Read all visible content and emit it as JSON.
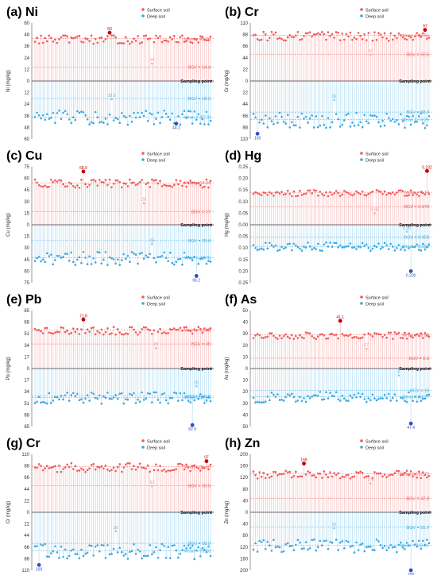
{
  "figure": {
    "colors": {
      "surface": "#f05a5a",
      "deep": "#3aa8e0",
      "highlight_surface": "#c00000",
      "highlight_deep": "#3050c0"
    },
    "legend": {
      "surface": "Surface soil",
      "deep": "Deep soil"
    },
    "xlabel": "Sampling point"
  },
  "chart_data": [
    {
      "type": "scatter",
      "title": "(a) Ni",
      "ylabel": "Ni (mg/kg)",
      "top_ticks": [
        "60",
        "48",
        "36",
        "24",
        "12"
      ],
      "bottom_ticks": [
        "0",
        "12",
        "24",
        "36",
        "48",
        "60"
      ],
      "ylim": [
        -60,
        60
      ],
      "surface_mean_label": "Mean = 43.76",
      "surface_mean": 43.76,
      "bgv_top_label": "BGV = 14.4",
      "bgv_top": 14.4,
      "bgv_bottom_label": "BGV = 18.2",
      "bgv_bottom": 18.2,
      "deep_mean_label": "Mean = 37.26",
      "deep_mean": 37.26,
      "max_surface_label": "50",
      "max_surface": 50,
      "max_surface_idx": 37,
      "min_surface_label": "18",
      "min_surface": 18,
      "min_surface_idx": 58,
      "max_deep_label": "44.1",
      "max_deep": 44.1,
      "max_deep_idx": 70,
      "min_deep_label": "18.9",
      "min_deep": 18.9,
      "min_deep_idx": 38
    },
    {
      "type": "scatter",
      "title": "(b) Cr",
      "ylabel": "Cr (mg/kg)",
      "top_ticks": [
        "110",
        "88",
        "66",
        "44",
        "22"
      ],
      "bottom_ticks": [
        "0",
        "22",
        "44",
        "66",
        "88",
        "110"
      ],
      "ylim": [
        -110,
        110
      ],
      "surface_mean_label": "Mean = 86.56",
      "surface_mean": 86.56,
      "bgv_top_label": "BGV = 50.5",
      "bgv_top": 50.5,
      "bgv_bottom_label": "BGV = 58.9",
      "bgv_bottom": 58.9,
      "deep_mean_label": "Mean = 73.26",
      "deep_mean": 73.26,
      "max_surface_label": "97",
      "max_surface": 97,
      "max_surface_idx": 85,
      "min_surface_label": "50",
      "min_surface": 50,
      "min_surface_idx": 58,
      "max_deep_label": "100",
      "max_deep": 100,
      "max_deep_idx": 2,
      "min_deep_label": "36",
      "min_deep": 36,
      "min_deep_idx": 40
    },
    {
      "type": "scatter",
      "title": "(c) Cu",
      "ylabel": "Cu (mg/kg)",
      "top_ticks": [
        "75",
        "60",
        "45",
        "30",
        "15"
      ],
      "bottom_ticks": [
        "0",
        "15",
        "30",
        "45",
        "60",
        "75"
      ],
      "ylim": [
        -75,
        75
      ],
      "surface_mean_label": "Mean = 54.24",
      "surface_mean": 54.24,
      "bgv_top_label": "BGV = 17",
      "bgv_top": 17,
      "bgv_bottom_label": "BGV = 20.4",
      "bgv_bottom": 20.4,
      "deep_mean_label": "Mean = 42.76",
      "deep_mean": 42.76,
      "max_surface_label": "68.9",
      "max_surface": 68.9,
      "max_surface_idx": 24,
      "min_surface_label": "28",
      "min_surface": 28,
      "min_surface_idx": 54,
      "max_deep_label": "66.2",
      "max_deep": 66.2,
      "max_deep_idx": 80,
      "min_deep_label": "25",
      "min_deep": 25,
      "min_deep_idx": 58
    },
    {
      "type": "scatter",
      "title": "(d) Hg",
      "ylabel": "Hg (mg/kg)",
      "top_ticks": [
        "0.25",
        "0.20",
        "0.15",
        "0.10",
        "0.05"
      ],
      "bottom_ticks": [
        "0.00",
        "0.05",
        "0.10",
        "0.15",
        "0.20",
        "0.25"
      ],
      "ylim": [
        -0.25,
        0.25
      ],
      "surface_mean_label": "Mean = 0.14",
      "surface_mean": 0.14,
      "bgv_top_label": "BGV = 0.078",
      "bgv_top": 0.078,
      "bgv_bottom_label": "BGV = 0.053",
      "bgv_bottom": 0.053,
      "deep_mean_label": "Mean = 0.093",
      "deep_mean": 0.093,
      "max_surface_label": "0.232",
      "max_surface": 0.232,
      "max_surface_idx": 86,
      "min_surface_label": "0.05",
      "min_surface": 0.05,
      "min_surface_idx": 60,
      "max_deep_label": "0.200",
      "max_deep": 0.2,
      "max_deep_idx": 78,
      "min_deep_label": "0.03",
      "min_deep": 0.03,
      "min_deep_idx": 76
    },
    {
      "type": "scatter",
      "title": "(e) Pb",
      "ylabel": "Pb (mg/kg)",
      "top_ticks": [
        "85",
        "68",
        "51",
        "34",
        "17"
      ],
      "bottom_ticks": [
        "0",
        "17",
        "34",
        "51",
        "68",
        "85"
      ],
      "ylim": [
        -85,
        85
      ],
      "surface_mean_label": "Mean = 56.43",
      "surface_mean": 56.43,
      "bgv_top_label": "BGV = 36",
      "bgv_top": 36,
      "bgv_bottom_label": "BGV = 40.5",
      "bgv_bottom": 40.5,
      "deep_mean_label": "Mean = 42.59",
      "deep_mean": 42.59,
      "max_surface_label": "71.8",
      "max_surface": 71.8,
      "max_surface_idx": 24,
      "min_surface_label": "30",
      "min_surface": 30,
      "min_surface_idx": 60,
      "max_deep_label": "82.9",
      "max_deep": 82.9,
      "max_deep_idx": 78,
      "min_deep_label": "26",
      "min_deep": 26,
      "min_deep_idx": 80
    },
    {
      "type": "scatter",
      "title": "(f) As",
      "ylabel": "As (mg/kg)",
      "top_ticks": [
        "50",
        "40",
        "30",
        "20",
        "10"
      ],
      "bottom_ticks": [
        "0",
        "10",
        "20",
        "30",
        "40",
        "50"
      ],
      "ylim": [
        -50,
        50
      ],
      "surface_mean_label": "Mean = 28.99",
      "surface_mean": 28.99,
      "bgv_top_label": "BGV = 8.9",
      "bgv_top": 8.9,
      "bgv_bottom_label": "BGV = 19",
      "bgv_bottom": 19,
      "deep_mean_label": "Mean = 24.27",
      "deep_mean": 24.27,
      "max_surface_label": "41.1",
      "max_surface": 41.1,
      "max_surface_idx": 43,
      "min_surface_label": "17",
      "min_surface": 17,
      "min_surface_idx": 56,
      "max_deep_label": "47.4",
      "max_deep": 47.4,
      "max_deep_idx": 78,
      "min_deep_label": "6",
      "min_deep": 6,
      "min_deep_idx": 72
    },
    {
      "type": "scatter",
      "title": "(g) Cr",
      "ylabel": "Cr (mg/kg)",
      "top_ticks": [
        "110",
        "88",
        "66",
        "44",
        "22"
      ],
      "bottom_ticks": [
        "0",
        "22",
        "44",
        "66",
        "88",
        "110"
      ],
      "ylim": [
        -110,
        110
      ],
      "surface_mean_label": "Mean = 86.56",
      "surface_mean": 86.56,
      "bgv_top_label": "BGV = 50.5",
      "bgv_top": 50.5,
      "bgv_bottom_label": "BGV = 58.9",
      "bgv_bottom": 58.9,
      "deep_mean_label": "Mean = 73.26",
      "deep_mean": 73.26,
      "max_surface_label": "97",
      "max_surface": 97,
      "max_surface_idx": 85,
      "min_surface_label": "50",
      "min_surface": 50,
      "min_surface_idx": 58,
      "max_deep_label": "100",
      "max_deep": 100,
      "max_deep_idx": 2,
      "min_deep_label": "36",
      "min_deep": 36,
      "min_deep_idx": 40
    },
    {
      "type": "scatter",
      "title": "(h) Zn",
      "ylabel": "Zn (mg/kg)",
      "top_ticks": [
        "200",
        "160",
        "120",
        "80",
        "40"
      ],
      "bottom_ticks": [
        "0",
        "40",
        "80",
        "120",
        "160",
        "200"
      ],
      "ylim": [
        -200,
        200
      ],
      "surface_mean_label": "Mean = 132.72",
      "surface_mean": 132.72,
      "bgv_top_label": "BGV = 47.3",
      "bgv_top": 47.3,
      "bgv_bottom_label": "BGV = 51.7",
      "bgv_bottom": 51.7,
      "deep_mean_label": "Mean = 113.61",
      "deep_mean": 113.61,
      "max_surface_label": "168",
      "max_surface": 168,
      "max_surface_idx": 25,
      "min_surface_label": "100",
      "min_surface": 100,
      "min_surface_idx": 58,
      "max_deep_label": "200",
      "max_deep": 200,
      "max_deep_idx": 78,
      "min_deep_label": "55",
      "min_deep": 55,
      "min_deep_idx": 40
    }
  ]
}
